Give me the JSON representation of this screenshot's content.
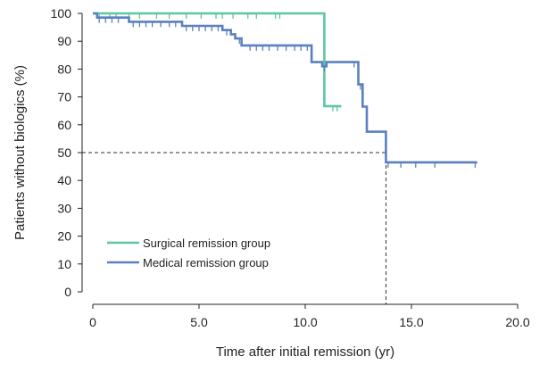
{
  "chart_data": {
    "type": "line",
    "subtype": "kaplan-meier step curve",
    "xlabel": "Time after initial remission (yr)",
    "ylabel": "Patients without biologics (%)",
    "xlim": [
      0,
      20
    ],
    "ylim": [
      0,
      100
    ],
    "x_ticks": [
      0,
      5,
      10,
      15,
      20
    ],
    "x_tick_labels": [
      "0",
      "5.0",
      "10.0",
      "15.0",
      "20.0"
    ],
    "y_ticks": [
      0,
      10,
      20,
      30,
      40,
      50,
      60,
      70,
      80,
      90,
      100
    ],
    "y_tick_labels": [
      "0",
      "10",
      "20",
      "30",
      "40",
      "50",
      "60",
      "70",
      "80",
      "90",
      "100"
    ],
    "grid": false,
    "legend_position": "bottom-left",
    "series": [
      {
        "name": "Surgical remission group",
        "color": "#5cc8a0",
        "steps": [
          [
            0,
            100
          ],
          [
            10.9,
            100
          ],
          [
            10.9,
            66.7
          ],
          [
            11.7,
            66.7
          ]
        ],
        "censor_x": [
          0.3,
          0.8,
          1.1,
          1.7,
          2.2,
          3.0,
          3.6,
          4.4,
          5.1,
          5.8,
          6.1,
          6.6,
          7.3,
          7.7,
          8.6,
          8.8,
          11.3,
          11.5
        ]
      },
      {
        "name": "Medical remission group",
        "color": "#5b80c0",
        "steps": [
          [
            0,
            100
          ],
          [
            0.2,
            100
          ],
          [
            0.2,
            98.5
          ],
          [
            1.7,
            98.5
          ],
          [
            1.7,
            97.0
          ],
          [
            4.2,
            97.0
          ],
          [
            4.2,
            95.5
          ],
          [
            6.1,
            95.5
          ],
          [
            6.1,
            94.0
          ],
          [
            6.5,
            94.0
          ],
          [
            6.5,
            92.5
          ],
          [
            6.7,
            92.5
          ],
          [
            6.7,
            91.0
          ],
          [
            7.0,
            91.0
          ],
          [
            7.0,
            88.5
          ],
          [
            10.3,
            88.5
          ],
          [
            10.3,
            82.5
          ],
          [
            10.8,
            82.5
          ],
          [
            10.8,
            81.0
          ],
          [
            11.0,
            81.0
          ],
          [
            11.0,
            82.5
          ],
          [
            12.5,
            82.5
          ],
          [
            12.5,
            74.5
          ],
          [
            12.7,
            74.5
          ],
          [
            12.7,
            66.5
          ],
          [
            12.9,
            66.5
          ],
          [
            12.9,
            57.5
          ],
          [
            13.8,
            57.5
          ],
          [
            13.8,
            46.5
          ],
          [
            18.1,
            46.5
          ]
        ],
        "censor_x": [
          0.3,
          0.6,
          0.9,
          1.2,
          1.9,
          2.2,
          2.5,
          2.8,
          3.2,
          3.6,
          3.9,
          4.4,
          4.7,
          5.0,
          5.3,
          5.6,
          5.9,
          6.3,
          6.9,
          7.4,
          7.7,
          8.0,
          8.3,
          8.7,
          9.1,
          9.5,
          9.8,
          10.1,
          10.9,
          12.3,
          12.6,
          13.9,
          14.5,
          15.2,
          16.1,
          18.0
        ]
      }
    ],
    "reference_line": {
      "y": 50,
      "x": 13.8
    }
  },
  "icons": [
    "legend-line-surgical",
    "legend-line-medical"
  ]
}
